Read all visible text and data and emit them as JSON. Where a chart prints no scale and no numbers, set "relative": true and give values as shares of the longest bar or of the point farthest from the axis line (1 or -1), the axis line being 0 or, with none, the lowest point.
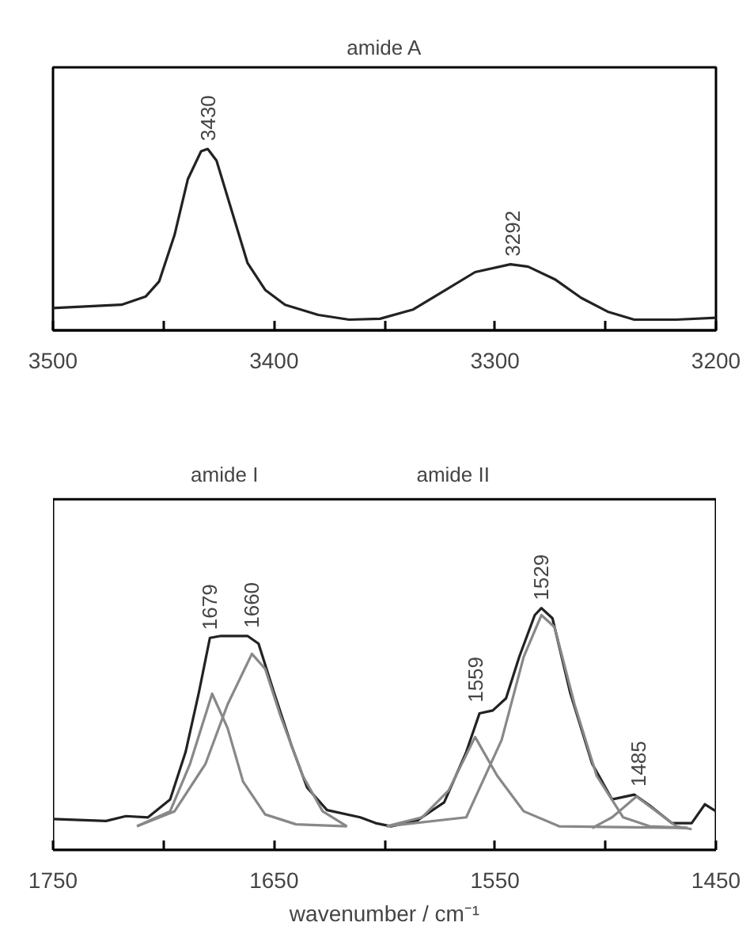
{
  "chart_data": [
    {
      "type": "line",
      "title": "amide A",
      "relative": true,
      "xlim": [
        3500,
        3200
      ],
      "xticks": [
        3500,
        {
          "value": 3450,
          "label": null
        },
        3400,
        {
          "value": 3350,
          "label": null
        },
        3300,
        {
          "value": 3250,
          "label": null
        },
        3200
      ],
      "series": [
        {
          "color": "#222222",
          "x": [
            3500,
            3469,
            3458,
            3452,
            3445,
            3439,
            3433,
            3430,
            3426,
            3419,
            3412,
            3404,
            3395,
            3380,
            3366,
            3352,
            3337,
            3323,
            3309,
            3293,
            3285,
            3273,
            3261,
            3249,
            3237,
            3218,
            3200
          ],
          "values": [
            0.123,
            0.141,
            0.187,
            0.269,
            0.526,
            0.833,
            0.987,
            1.0,
            0.936,
            0.654,
            0.372,
            0.223,
            0.141,
            0.085,
            0.059,
            0.064,
            0.115,
            0.218,
            0.321,
            0.364,
            0.351,
            0.282,
            0.179,
            0.103,
            0.059,
            0.059,
            0.069
          ]
        }
      ],
      "annotations": [
        {
          "text": "3430",
          "x": 3430,
          "y": 1.0
        },
        {
          "text": "3292",
          "x": 3292,
          "y": 0.364
        }
      ]
    },
    {
      "type": "line",
      "xlabel": "wavenumber / cm⁻¹",
      "relative": true,
      "xlim": [
        1750,
        1450
      ],
      "xticks": [
        1750,
        {
          "value": 1700,
          "label": null
        },
        1650,
        {
          "value": 1600,
          "label": null
        },
        1550,
        {
          "value": 1500,
          "label": null
        },
        1450
      ],
      "series": [
        {
          "color": "#222222",
          "x": [
            1750,
            1726,
            1717,
            1707,
            1697,
            1690,
            1684,
            1679,
            1674,
            1662,
            1657,
            1650,
            1642,
            1635,
            1626,
            1611,
            1604,
            1597,
            1585,
            1573,
            1563,
            1557,
            1551,
            1545,
            1539,
            1532,
            1529,
            1524,
            1516,
            1506,
            1497,
            1487,
            1480,
            1470,
            1461,
            1455,
            1450
          ],
          "values": [
            0.128,
            0.12,
            0.14,
            0.135,
            0.209,
            0.405,
            0.651,
            0.877,
            0.885,
            0.885,
            0.853,
            0.651,
            0.43,
            0.258,
            0.165,
            0.135,
            0.111,
            0.098,
            0.123,
            0.197,
            0.405,
            0.565,
            0.577,
            0.627,
            0.799,
            0.971,
            1.0,
            0.958,
            0.651,
            0.356,
            0.209,
            0.229,
            0.184,
            0.111,
            0.111,
            0.189,
            0.16
          ]
        },
        {
          "color": "#888888",
          "x": [
            1712,
            1697,
            1688,
            1678,
            1671,
            1664,
            1654,
            1640,
            1617
          ],
          "values": [
            0.098,
            0.16,
            0.356,
            0.646,
            0.504,
            0.283,
            0.147,
            0.106,
            0.098
          ]
        },
        {
          "color": "#888888",
          "x": [
            1712,
            1695,
            1681,
            1671,
            1660,
            1654,
            1647,
            1637,
            1628,
            1617
          ],
          "values": [
            0.098,
            0.16,
            0.356,
            0.602,
            0.811,
            0.749,
            0.553,
            0.307,
            0.16,
            0.098
          ]
        },
        {
          "color": "#888888",
          "x": [
            1599,
            1583,
            1571,
            1559,
            1549,
            1537,
            1521,
            1463
          ],
          "values": [
            0.098,
            0.135,
            0.246,
            0.467,
            0.307,
            0.16,
            0.098,
            0.091
          ]
        },
        {
          "color": "#888888",
          "x": [
            1599,
            1563,
            1547,
            1537,
            1529,
            1523,
            1514,
            1504,
            1492,
            1480,
            1463
          ],
          "values": [
            0.098,
            0.135,
            0.455,
            0.799,
            0.971,
            0.921,
            0.602,
            0.307,
            0.135,
            0.098,
            0.091
          ]
        },
        {
          "color": "#888888",
          "x": [
            1506,
            1497,
            1486,
            1477,
            1468,
            1461
          ],
          "values": [
            0.091,
            0.135,
            0.221,
            0.16,
            0.098,
            0.086
          ]
        }
      ],
      "annotations": [
        "amide I",
        "amide II",
        {
          "text": "1679",
          "x": 1679,
          "y": 0.877
        },
        {
          "text": "1660",
          "x": 1660,
          "y": 0.885
        },
        {
          "text": "1559",
          "x": 1559,
          "y": 0.577
        },
        {
          "text": "1529",
          "x": 1529,
          "y": 1.0
        },
        {
          "text": "1485",
          "x": 1485,
          "y": 0.229
        }
      ]
    }
  ]
}
